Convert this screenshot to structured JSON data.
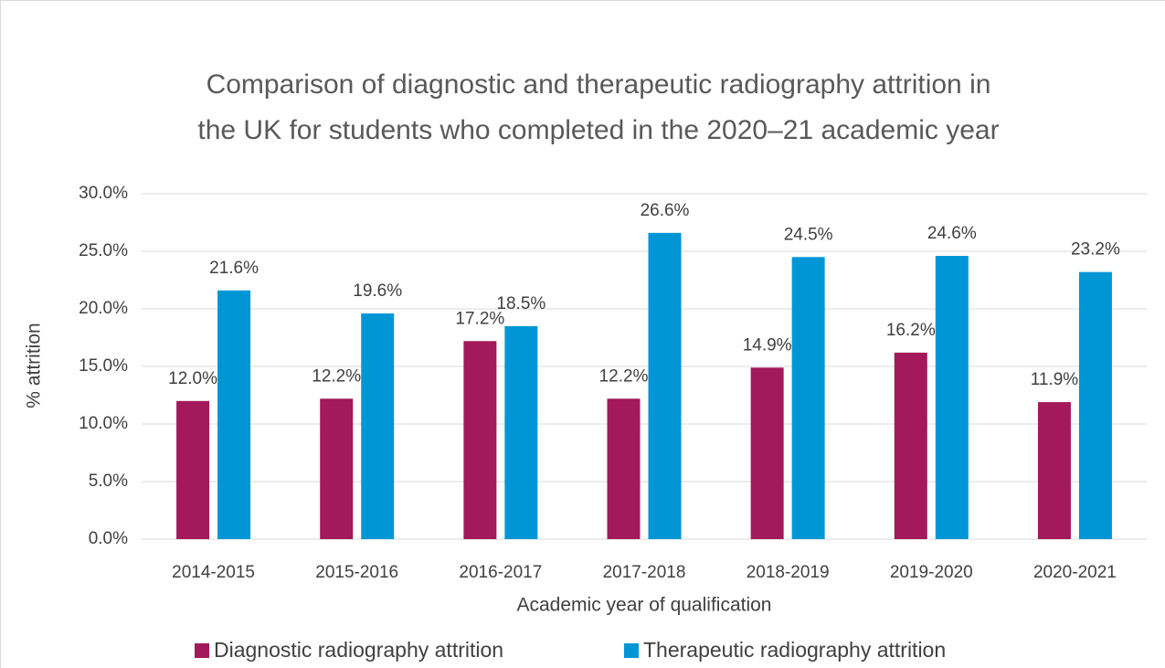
{
  "chart_data": {
    "type": "bar",
    "title": "Comparison of diagnostic and therapeutic radiography attrition in the UK for students who completed in the 2020–21 academic year",
    "x_label": "Academic year of qualification",
    "y_label": "% attrition",
    "categories": [
      "2014-2015",
      "2015-2016",
      "2016-2017",
      "2017-2018",
      "2018-2019",
      "2019-2020",
      "2020-2021"
    ],
    "series": [
      {
        "name": "Diagnostic radiography attrition",
        "color": "#a3195b",
        "values": [
          12.0,
          12.2,
          17.2,
          12.2,
          14.9,
          16.2,
          11.9
        ],
        "value_labels": [
          "12.0%",
          "12.2%",
          "17.2%",
          "12.2%",
          "14.9%",
          "16.2%",
          "11.9%"
        ]
      },
      {
        "name": "Therapeutic radiography attrition",
        "color": "#0096d6",
        "values": [
          21.6,
          19.6,
          18.5,
          26.6,
          24.5,
          24.6,
          23.2
        ],
        "value_labels": [
          "21.6%",
          "19.6%",
          "18.5%",
          "26.6%",
          "24.5%",
          "24.6%",
          "23.2%"
        ]
      }
    ],
    "ylim": [
      0,
      30
    ],
    "yticks": [
      {
        "value": 0,
        "label": "0.0%"
      },
      {
        "value": 5,
        "label": "5.0%"
      },
      {
        "value": 10,
        "label": "10.0%"
      },
      {
        "value": 15,
        "label": "15.0%"
      },
      {
        "value": 20,
        "label": "20.0%"
      },
      {
        "value": 25,
        "label": "25.0%"
      },
      {
        "value": 30,
        "label": "30.0%"
      }
    ],
    "grid": true,
    "legend": "bottom"
  }
}
